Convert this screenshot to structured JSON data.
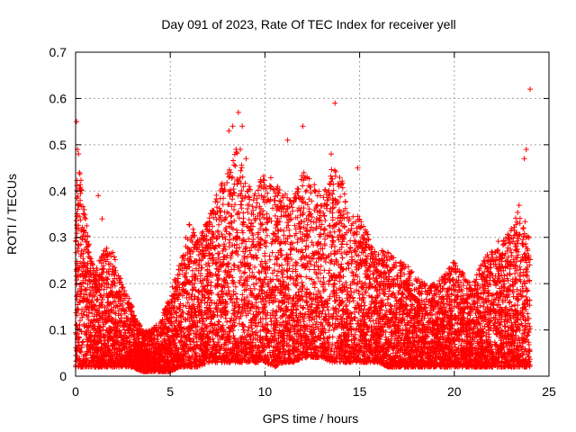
{
  "chart_data": {
    "type": "scatter",
    "title": "Day 091 of 2023, Rate Of TEC Index for receiver yell",
    "xlabel": "GPS time / hours",
    "ylabel": "ROTI / TECUs",
    "xlim": [
      0,
      25
    ],
    "ylim": [
      0,
      0.7
    ],
    "xticks": [
      0,
      5,
      10,
      15,
      20,
      25
    ],
    "yticks": [
      0,
      0.1,
      0.2,
      0.3,
      0.4,
      0.5,
      0.6,
      0.7
    ],
    "xtick_labels": [
      "0",
      "5",
      "10",
      "15",
      "20",
      "25"
    ],
    "ytick_labels": [
      "0",
      "0.1",
      "0.2",
      "0.3",
      "0.4",
      "0.5",
      "0.6",
      "0.7"
    ],
    "grid": true,
    "marker": "plus",
    "color": "#ff0000",
    "envelope": {
      "description_x_hours": [
        0,
        0.1,
        0.5,
        1,
        1.5,
        2,
        2.5,
        3,
        3.5,
        4,
        4.5,
        5,
        5.5,
        6,
        6.5,
        7,
        7.5,
        8,
        8.5,
        9,
        9.5,
        10,
        10.5,
        11,
        11.5,
        12,
        12.5,
        13,
        13.5,
        14,
        14.5,
        15,
        15.5,
        16,
        16.5,
        17,
        17.5,
        18,
        18.5,
        19,
        19.5,
        20,
        20.5,
        21,
        21.5,
        22,
        22.5,
        23,
        23.5,
        24
      ],
      "upper": [
        0.25,
        0.5,
        0.35,
        0.22,
        0.28,
        0.27,
        0.2,
        0.15,
        0.1,
        0.1,
        0.12,
        0.18,
        0.25,
        0.33,
        0.3,
        0.35,
        0.4,
        0.45,
        0.5,
        0.42,
        0.4,
        0.45,
        0.42,
        0.4,
        0.38,
        0.45,
        0.42,
        0.4,
        0.45,
        0.44,
        0.35,
        0.35,
        0.3,
        0.28,
        0.27,
        0.25,
        0.24,
        0.22,
        0.2,
        0.2,
        0.22,
        0.25,
        0.22,
        0.2,
        0.25,
        0.28,
        0.3,
        0.32,
        0.38,
        0.3
      ],
      "lower": [
        0.02,
        0.02,
        0.02,
        0.02,
        0.02,
        0.02,
        0.02,
        0.02,
        0.01,
        0.01,
        0.01,
        0.01,
        0.02,
        0.02,
        0.02,
        0.03,
        0.03,
        0.03,
        0.03,
        0.03,
        0.03,
        0.03,
        0.02,
        0.03,
        0.03,
        0.04,
        0.04,
        0.04,
        0.03,
        0.03,
        0.03,
        0.03,
        0.03,
        0.03,
        0.02,
        0.02,
        0.02,
        0.02,
        0.02,
        0.02,
        0.02,
        0.02,
        0.02,
        0.02,
        0.02,
        0.02,
        0.02,
        0.02,
        0.02,
        0.02
      ]
    },
    "outliers": [
      [
        0.05,
        0.55
      ],
      [
        0.1,
        0.49
      ],
      [
        0.15,
        0.48
      ],
      [
        0.2,
        0.44
      ],
      [
        1.2,
        0.39
      ],
      [
        1.4,
        0.34
      ],
      [
        8.1,
        0.53
      ],
      [
        8.3,
        0.54
      ],
      [
        8.6,
        0.57
      ],
      [
        8.8,
        0.54
      ],
      [
        8.7,
        0.49
      ],
      [
        9.0,
        0.47
      ],
      [
        11.2,
        0.51
      ],
      [
        12.0,
        0.54
      ],
      [
        13.7,
        0.59
      ],
      [
        13.5,
        0.48
      ],
      [
        14.9,
        0.45
      ],
      [
        23.8,
        0.49
      ],
      [
        23.7,
        0.47
      ],
      [
        24.0,
        0.62
      ]
    ]
  }
}
